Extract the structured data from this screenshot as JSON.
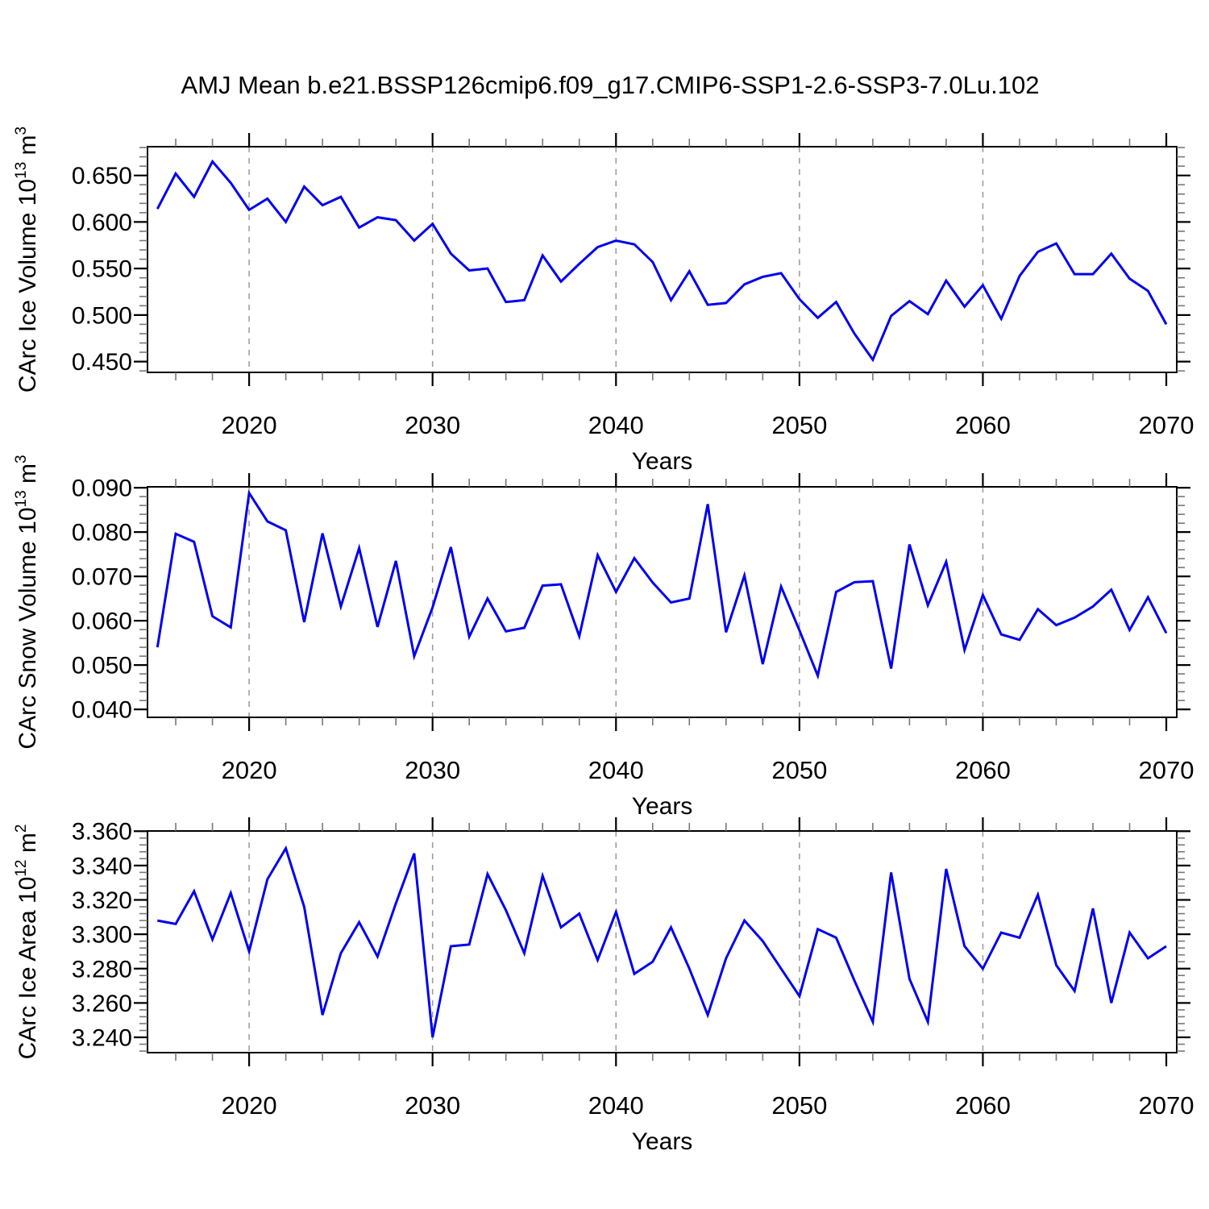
{
  "title": "AMJ Mean b.e21.BSSP126cmip6.f09_g17.CMIP6-SSP1-2.6-SSP3-7.0Lu.102",
  "colors": {
    "line": "#0000EE",
    "frame": "#000000",
    "major_tick": "#000000",
    "minor_tick": "#777777",
    "grid": "#999999",
    "text": "#000000",
    "background": "#ffffff"
  },
  "xlabel": "Years",
  "chart_data": [
    {
      "id": "ice_volume",
      "type": "line",
      "ylabel": {
        "prefix": "CArc Ice Volume 10",
        "exp": "13",
        "unit": " m",
        "unit_exp": "3"
      },
      "xlabel": "Years",
      "xlim": [
        2014.46,
        2070.57
      ],
      "ylim": [
        0.4384,
        0.6809
      ],
      "xticks": [
        2020,
        2030,
        2040,
        2050,
        2060,
        2070
      ],
      "xtick_labels": [
        "2020",
        "2030",
        "2040",
        "2050",
        "2060",
        "2070"
      ],
      "x_minor_step": 2,
      "yticks": [
        0.45,
        0.5,
        0.55,
        0.6,
        0.65
      ],
      "ytick_labels": [
        "0.450",
        "0.500",
        "0.550",
        "0.600",
        "0.650"
      ],
      "y_minor_step": 0.01,
      "grid_at": [
        2020,
        2030,
        2040,
        2050,
        2060
      ],
      "x": [
        2015,
        2016,
        2017,
        2018,
        2019,
        2020,
        2021,
        2022,
        2023,
        2024,
        2025,
        2026,
        2027,
        2028,
        2029,
        2030,
        2031,
        2032,
        2033,
        2034,
        2035,
        2036,
        2037,
        2038,
        2039,
        2040,
        2041,
        2042,
        2043,
        2044,
        2045,
        2046,
        2047,
        2048,
        2049,
        2050,
        2051,
        2052,
        2053,
        2054,
        2055,
        2056,
        2057,
        2058,
        2059,
        2060,
        2061,
        2062,
        2063,
        2064,
        2065,
        2066,
        2067,
        2068,
        2069,
        2070
      ],
      "values": [
        0.614,
        0.652,
        0.627,
        0.665,
        0.642,
        0.613,
        0.625,
        0.6,
        0.638,
        0.618,
        0.627,
        0.594,
        0.605,
        0.602,
        0.58,
        0.598,
        0.566,
        0.548,
        0.55,
        0.514,
        0.516,
        0.564,
        0.536,
        0.555,
        0.573,
        0.58,
        0.576,
        0.557,
        0.516,
        0.547,
        0.511,
        0.513,
        0.533,
        0.541,
        0.545,
        0.517,
        0.497,
        0.514,
        0.48,
        0.452,
        0.499,
        0.515,
        0.501,
        0.537,
        0.509,
        0.532,
        0.496,
        0.542,
        0.568,
        0.577,
        0.544,
        0.544,
        0.566,
        0.539,
        0.526,
        0.49
      ]
    },
    {
      "id": "snow_volume",
      "type": "line",
      "ylabel": {
        "prefix": "CArc Snow Volume 10",
        "exp": "13",
        "unit": " m",
        "unit_exp": "3"
      },
      "xlabel": "Years",
      "xlim": [
        2014.46,
        2070.57
      ],
      "ylim": [
        0.0382,
        0.0902
      ],
      "xticks": [
        2020,
        2030,
        2040,
        2050,
        2060,
        2070
      ],
      "xtick_labels": [
        "2020",
        "2030",
        "2040",
        "2050",
        "2060",
        "2070"
      ],
      "x_minor_step": 2,
      "yticks": [
        0.04,
        0.05,
        0.06,
        0.07,
        0.08,
        0.09
      ],
      "ytick_labels": [
        "0.040",
        "0.050",
        "0.060",
        "0.070",
        "0.080",
        "0.090"
      ],
      "y_minor_step": 0.002,
      "grid_at": [
        2020,
        2030,
        2040,
        2050,
        2060
      ],
      "x": [
        2015,
        2016,
        2017,
        2018,
        2019,
        2020,
        2021,
        2022,
        2023,
        2024,
        2025,
        2026,
        2027,
        2028,
        2029,
        2030,
        2031,
        2032,
        2033,
        2034,
        2035,
        2036,
        2037,
        2038,
        2039,
        2040,
        2041,
        2042,
        2043,
        2044,
        2045,
        2046,
        2047,
        2048,
        2049,
        2050,
        2051,
        2052,
        2053,
        2054,
        2055,
        2056,
        2057,
        2058,
        2059,
        2060,
        2061,
        2062,
        2063,
        2064,
        2065,
        2066,
        2067,
        2068,
        2069,
        2070
      ],
      "values": [
        0.054,
        0.0796,
        0.0778,
        0.061,
        0.0585,
        0.0888,
        0.0824,
        0.0804,
        0.0597,
        0.0797,
        0.0632,
        0.0764,
        0.0586,
        0.0735,
        0.052,
        0.063,
        0.0766,
        0.0564,
        0.065,
        0.0576,
        0.0584,
        0.0679,
        0.0682,
        0.0565,
        0.0748,
        0.0665,
        0.0741,
        0.0686,
        0.0641,
        0.065,
        0.0863,
        0.0574,
        0.0702,
        0.0502,
        0.0677,
        0.0578,
        0.0476,
        0.0665,
        0.0687,
        0.0689,
        0.0492,
        0.0772,
        0.0635,
        0.0733,
        0.0534,
        0.0658,
        0.0569,
        0.0557,
        0.0626,
        0.059,
        0.0607,
        0.0632,
        0.067,
        0.0579,
        0.0653,
        0.0572
      ]
    },
    {
      "id": "ice_area",
      "type": "line",
      "ylabel": {
        "prefix": "CArc Ice Area 10",
        "exp": "12",
        "unit": " m",
        "unit_exp": "2"
      },
      "xlabel": "Years",
      "xlim": [
        2014.46,
        2070.57
      ],
      "ylim": [
        3.2311,
        3.3601
      ],
      "xticks": [
        2020,
        2030,
        2040,
        2050,
        2060,
        2070
      ],
      "xtick_labels": [
        "2020",
        "2030",
        "2040",
        "2050",
        "2060",
        "2070"
      ],
      "x_minor_step": 2,
      "yticks": [
        3.24,
        3.26,
        3.28,
        3.3,
        3.32,
        3.34,
        3.36
      ],
      "ytick_labels": [
        "3.240",
        "3.260",
        "3.280",
        "3.300",
        "3.320",
        "3.340",
        "3.360"
      ],
      "y_minor_step": 0.004,
      "grid_at": [
        2020,
        2030,
        2040,
        2050,
        2060
      ],
      "x": [
        2015,
        2016,
        2017,
        2018,
        2019,
        2020,
        2021,
        2022,
        2023,
        2024,
        2025,
        2026,
        2027,
        2028,
        2029,
        2030,
        2031,
        2032,
        2033,
        2034,
        2035,
        2036,
        2037,
        2038,
        2039,
        2040,
        2041,
        2042,
        2043,
        2044,
        2045,
        2046,
        2047,
        2048,
        2049,
        2050,
        2051,
        2052,
        2053,
        2054,
        2055,
        2056,
        2057,
        2058,
        2059,
        2060,
        2061,
        2062,
        2063,
        2064,
        2065,
        2066,
        2067,
        2068,
        2069,
        2070
      ],
      "values": [
        3.308,
        3.306,
        3.325,
        3.297,
        3.324,
        3.29,
        3.332,
        3.35,
        3.316,
        3.253,
        3.289,
        3.307,
        3.287,
        3.318,
        3.347,
        3.24,
        3.293,
        3.294,
        3.335,
        3.314,
        3.289,
        3.334,
        3.304,
        3.312,
        3.285,
        3.313,
        3.277,
        3.284,
        3.304,
        3.28,
        3.253,
        3.286,
        3.308,
        3.296,
        3.28,
        3.264,
        3.303,
        3.298,
        3.273,
        3.249,
        3.336,
        3.274,
        3.249,
        3.338,
        3.293,
        3.28,
        3.301,
        3.298,
        3.323,
        3.282,
        3.267,
        3.315,
        3.26,
        3.301,
        3.286,
        3.293
      ]
    }
  ]
}
